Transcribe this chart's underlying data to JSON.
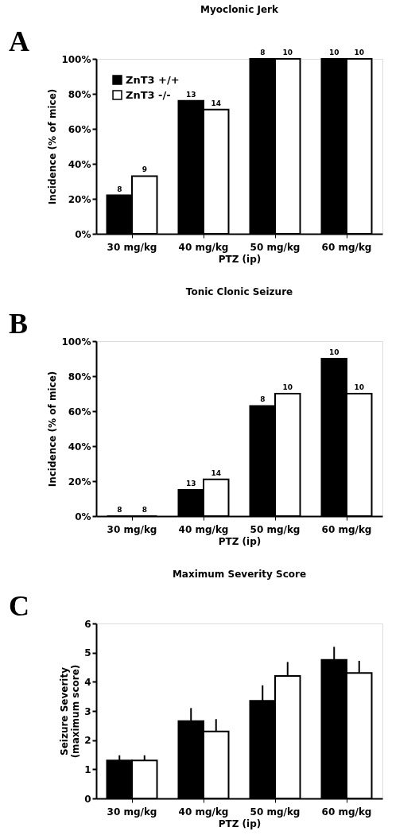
{
  "chart_data": [
    {
      "type": "bar",
      "title": "Myoclonic Jerk",
      "xlabel": "PTZ (ip)",
      "ylabel": "Incidence (% of mice)",
      "annotations": [
        "A",
        {
          "text": "8",
          "x": "30 mg/kg",
          "y": 22
        },
        {
          "text": "9",
          "x": "30 mg/kg",
          "y": 33
        },
        {
          "text": "13",
          "x": "40 mg/kg",
          "y": 76
        },
        {
          "text": "14",
          "x": "40 mg/kg",
          "y": 71
        },
        {
          "text": "8",
          "x": "50 mg/kg",
          "y": 100
        },
        {
          "text": "10",
          "x": "50 mg/kg",
          "y": 100
        },
        {
          "text": "10",
          "x": "60 mg/kg",
          "y": 100
        },
        {
          "text": "10",
          "x": "60 mg/kg",
          "y": 100
        }
      ],
      "categories": [
        "30 mg/kg",
        "40 mg/kg",
        "50 mg/kg",
        "60 mg/kg"
      ],
      "series": [
        {
          "name": "ZnT3 +/+",
          "color": "#000000",
          "values": [
            22,
            76,
            100,
            100
          ]
        },
        {
          "name": "ZnT3 -/-",
          "color": "#ffffff",
          "values": [
            33,
            71,
            100,
            100
          ]
        }
      ],
      "ylim": [
        0,
        100
      ],
      "yticks": [
        {
          "value": 0,
          "label": "0%"
        },
        {
          "value": 20,
          "label": "20%"
        },
        {
          "value": 40,
          "label": "40%"
        },
        {
          "value": 60,
          "label": "60%"
        },
        {
          "value": 80,
          "label": "80%"
        },
        {
          "value": 100,
          "label": "100%"
        }
      ],
      "grid": false,
      "legend": "top left"
    },
    {
      "type": "bar",
      "title": "Tonic Clonic Seizure",
      "xlabel": "PTZ (ip)",
      "ylabel": "Incidence (% of mice)",
      "annotations": [
        "B",
        {
          "text": "8",
          "x": "30 mg/kg",
          "y": 0
        },
        {
          "text": "8",
          "x": "30 mg/kg",
          "y": 0
        },
        {
          "text": "13",
          "x": "40 mg/kg",
          "y": 15
        },
        {
          "text": "14",
          "x": "40 mg/kg",
          "y": 21
        },
        {
          "text": "8",
          "x": "50 mg/kg",
          "y": 63
        },
        {
          "text": "10",
          "x": "50 mg/kg",
          "y": 70
        },
        {
          "text": "10",
          "x": "60 mg/kg",
          "y": 90
        },
        {
          "text": "10",
          "x": "60 mg/kg",
          "y": 70
        }
      ],
      "categories": [
        "30 mg/kg",
        "40 mg/kg",
        "50 mg/kg",
        "60 mg/kg"
      ],
      "series": [
        {
          "name": "ZnT3 +/+",
          "color": "#000000",
          "values": [
            0,
            15,
            63,
            90
          ]
        },
        {
          "name": "ZnT3 -/-",
          "color": "#ffffff",
          "values": [
            0,
            21,
            70,
            70
          ]
        }
      ],
      "ylim": [
        0,
        100
      ],
      "yticks": [
        {
          "value": 0,
          "label": "0%"
        },
        {
          "value": 20,
          "label": "20%"
        },
        {
          "value": 40,
          "label": "40%"
        },
        {
          "value": 60,
          "label": "60%"
        },
        {
          "value": 80,
          "label": "80%"
        },
        {
          "value": 100,
          "label": "100%"
        }
      ],
      "grid": false,
      "legend": "top left"
    },
    {
      "type": "bar",
      "title": "Maximum Severity Score",
      "xlabel": "PTZ (ip)",
      "ylabel": "Seizure Severity\n(maximum score)",
      "annotations": [
        "C"
      ],
      "categories": [
        "30 mg/kg",
        "40 mg/kg",
        "50 mg/kg",
        "60 mg/kg"
      ],
      "series": [
        {
          "name": "ZnT3 +/+",
          "color": "#000000",
          "values": [
            1.3,
            2.65,
            3.35,
            4.75
          ],
          "errors": [
            [
              1.3,
              1.48
            ],
            [
              2.65,
              3.1
            ],
            [
              3.35,
              3.88
            ],
            [
              4.75,
              5.2
            ]
          ]
        },
        {
          "name": "ZnT3 -/-",
          "color": "#ffffff",
          "values": [
            1.3,
            2.3,
            4.2,
            4.3
          ],
          "errors": [
            [
              1.3,
              1.48
            ],
            [
              2.3,
              2.72
            ],
            [
              4.2,
              4.68
            ],
            [
              4.3,
              4.72
            ]
          ]
        }
      ],
      "ylim": [
        0,
        6
      ],
      "yticks": [
        0,
        1,
        2,
        3,
        4,
        5,
        6
      ],
      "grid": false,
      "legend": "top left"
    }
  ]
}
